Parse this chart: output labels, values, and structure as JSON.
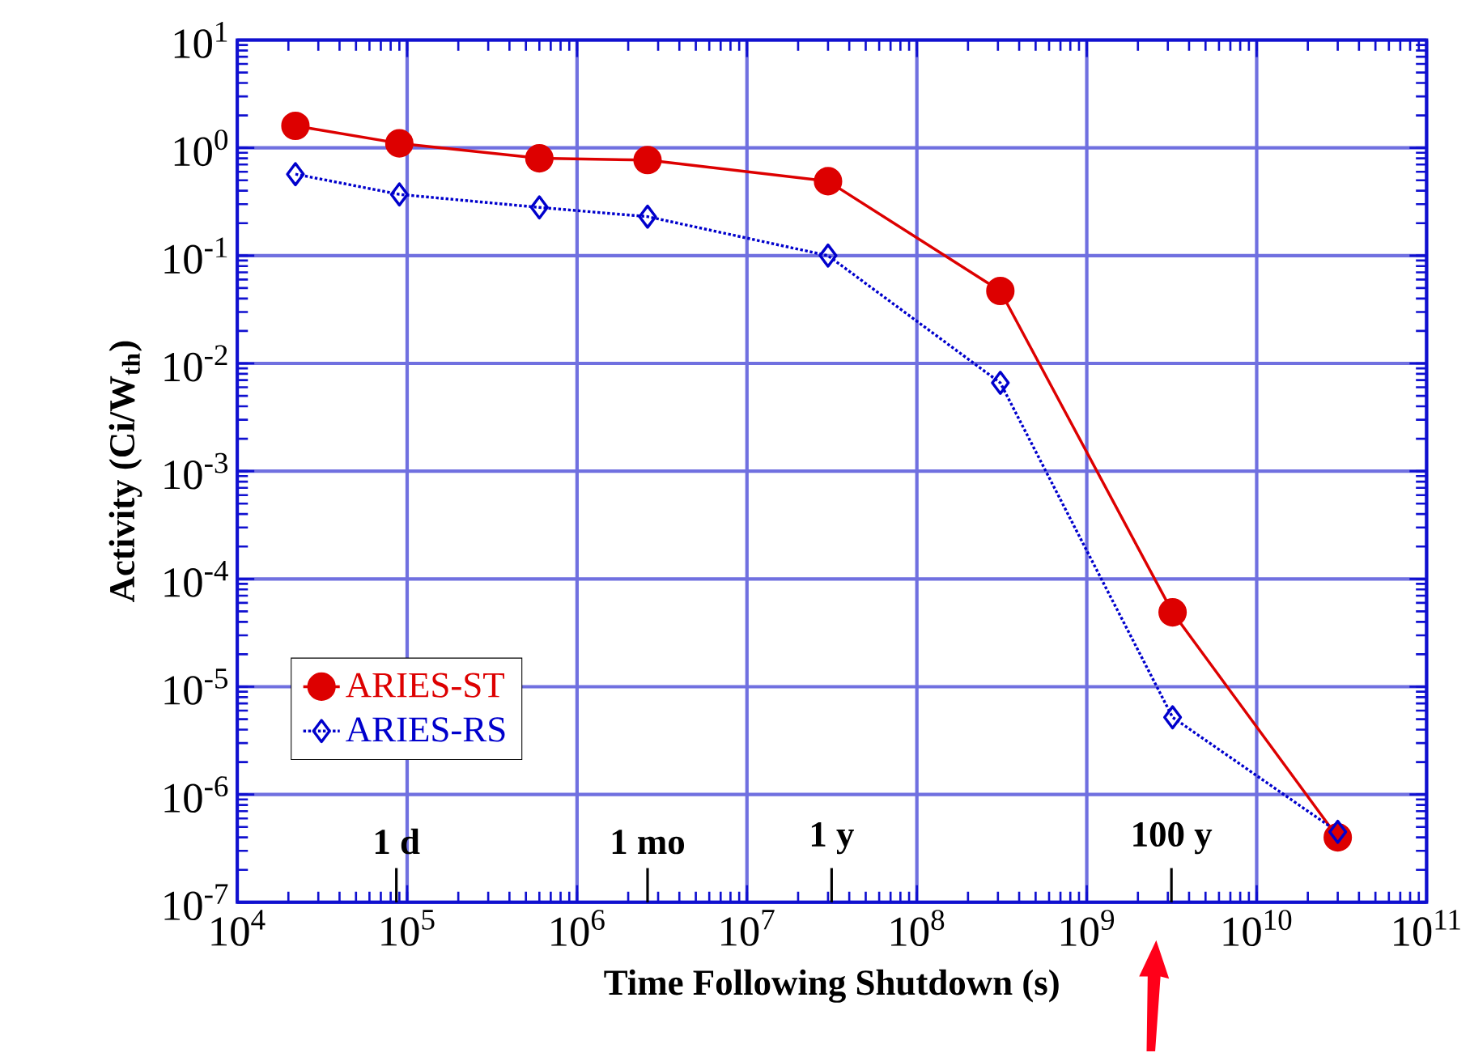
{
  "chart_data": {
    "type": "line",
    "xlabel": "Time Following Shutdown (s)",
    "ylabel": "Activity (Ci/W$_{th}$)",
    "log": "xy",
    "xlim": [
      10000,
      100000000000
    ],
    "ylim": [
      1e-07,
      10
    ],
    "xticks": [
      {
        "value": 10000,
        "label": "10$^{4}$"
      },
      {
        "value": 100000,
        "label": "10$^{5}$"
      },
      {
        "value": 1000000,
        "label": "10$^{6}$"
      },
      {
        "value": 10000000,
        "label": "10$^{7}$"
      },
      {
        "value": 100000000,
        "label": "10$^{8}$"
      },
      {
        "value": 1000000000,
        "label": "10$^{9}$"
      },
      {
        "value": 10000000000,
        "label": "10$^{10}$"
      },
      {
        "value": 100000000000,
        "label": "10$^{11}$"
      }
    ],
    "yticks": [
      {
        "value": 1e-07,
        "label": "10$^{-7}$"
      },
      {
        "value": 1e-06,
        "label": "10$^{-6}$"
      },
      {
        "value": 1e-05,
        "label": "10$^{-5}$"
      },
      {
        "value": 0.0001,
        "label": "10$^{-4}$"
      },
      {
        "value": 0.001,
        "label": "10$^{-3}$"
      },
      {
        "value": 0.01,
        "label": "10$^{-2}$"
      },
      {
        "value": 0.1,
        "label": "10$^{-1}$"
      },
      {
        "value": 1,
        "label": "10$^{0}$"
      },
      {
        "value": 10,
        "label": "10$^{1}$"
      }
    ],
    "grid": true,
    "legend": "left",
    "series": [
      {
        "name": "ARIES-ST",
        "color": "#dd0000",
        "marker": "circle",
        "line_style": "solid",
        "x": [
          22000,
          90000,
          600000,
          2600000,
          30000000,
          310000000,
          3200000000,
          30000000000
        ],
        "values": [
          1.6,
          1.1,
          0.8,
          0.77,
          0.49,
          0.047,
          4.9e-05,
          4e-07
        ]
      },
      {
        "name": "ARIES-RS",
        "color": "#0000cc",
        "marker": "diamond",
        "line_style": "dotted",
        "x": [
          22000,
          90000,
          600000,
          2600000,
          30000000,
          310000000,
          3200000000,
          30000000000
        ],
        "values": [
          0.57,
          0.37,
          0.28,
          0.23,
          0.1,
          0.0066,
          5.2e-06,
          4.5e-07
        ]
      }
    ],
    "ref_lines": [
      {
        "axis": "x",
        "value": 86400,
        "label": "1 d"
      },
      {
        "axis": "x",
        "value": 2600000,
        "label": "1 mo"
      },
      {
        "axis": "x",
        "value": 31500000,
        "label": "1 y"
      },
      {
        "axis": "x",
        "value": 3150000000,
        "label": "100 y"
      }
    ]
  }
}
